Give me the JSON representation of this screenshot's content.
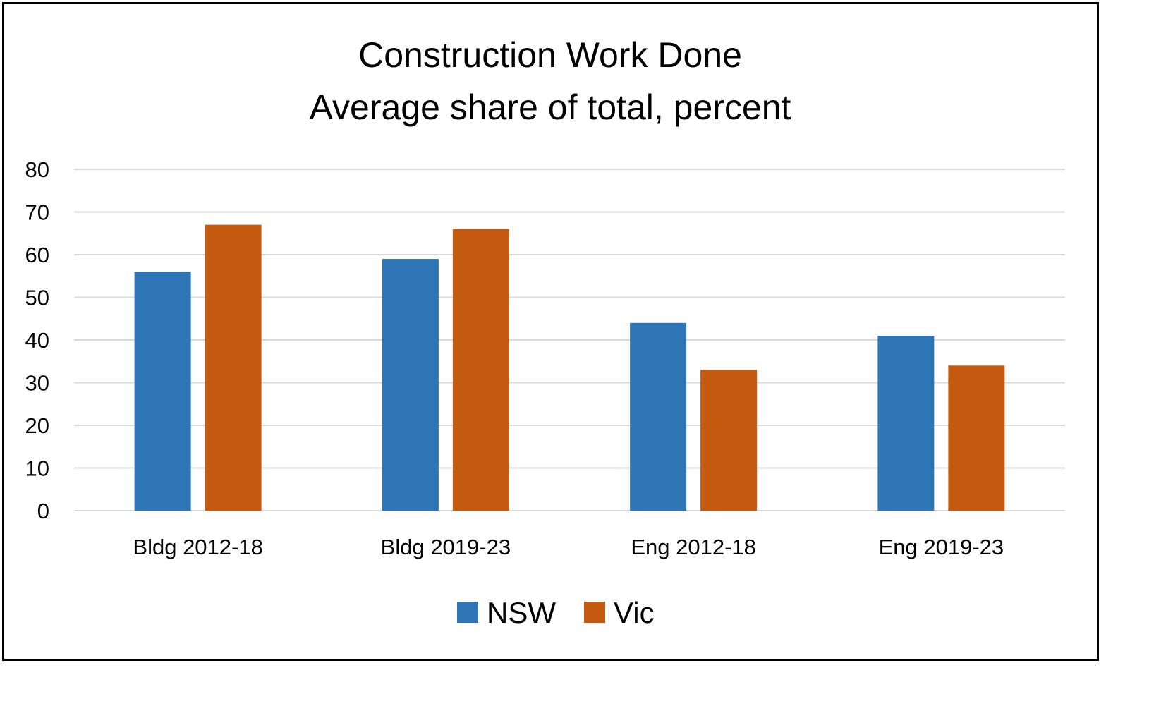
{
  "chart_data": {
    "type": "bar",
    "title": "Construction Work Done",
    "subtitle": "Average share of total, percent",
    "xlabel": "",
    "ylabel": "",
    "categories": [
      "Bldg 2012-18",
      "Bldg 2019-23",
      "Eng 2012-18",
      "Eng 2019-23"
    ],
    "series": [
      {
        "name": "NSW",
        "values": [
          56,
          59,
          44,
          41
        ],
        "color": "#2E75B6"
      },
      {
        "name": "Vic",
        "values": [
          67,
          66,
          33,
          34
        ],
        "color": "#C55A11"
      }
    ],
    "ylim": [
      0,
      80
    ],
    "yticks": [
      0,
      10,
      20,
      30,
      40,
      50,
      60,
      70,
      80
    ],
    "grid": true,
    "gridColor": "#D9D9D9",
    "legend": "bottom"
  }
}
